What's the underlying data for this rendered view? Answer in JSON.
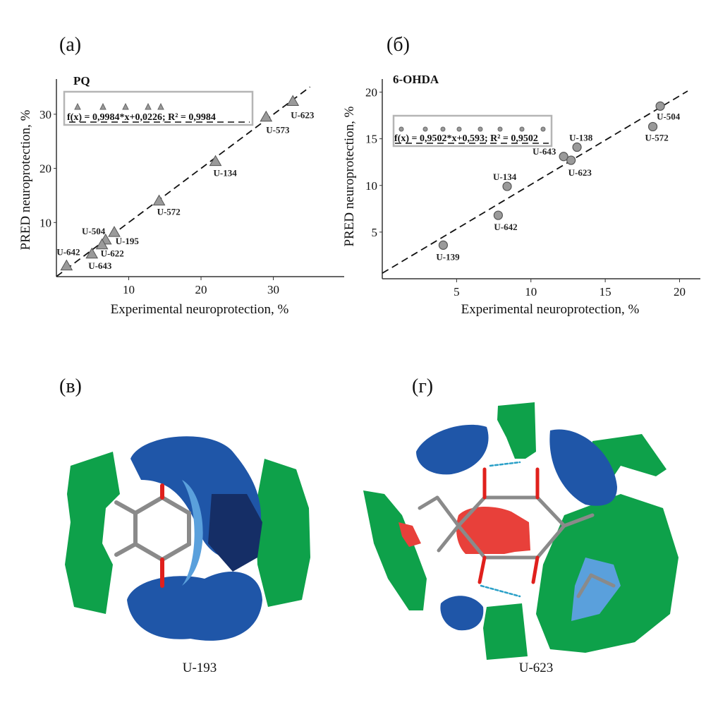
{
  "panels": {
    "a_label": "(a)",
    "b_label": "(б)",
    "c_label": "(в)",
    "d_label": "(г)",
    "c_caption": "U-193",
    "d_caption": "U-623"
  },
  "colors": {
    "marker_fill": "#9a9a9a",
    "marker_stroke": "#555555",
    "field_blue": "#1f56a8",
    "field_light_blue": "#5aa0dc",
    "field_green": "#0ea14a",
    "field_red": "#e8403a",
    "bond_gray": "#8a8a8a",
    "oxygen_red": "#e0201c"
  },
  "chart_data": [
    {
      "type": "scatter",
      "title": "PQ",
      "xlabel": "Experimental neuroprotection, %",
      "ylabel": "PRED neuroprotection, %",
      "xlim": [
        0,
        39.8
      ],
      "ylim": [
        0,
        36.5
      ],
      "xticks": [
        10,
        20,
        30
      ],
      "yticks": [
        10,
        20,
        30
      ],
      "grid": false,
      "marker": "triangle",
      "equation": "f(x) = 0,9984*x+0,0226; R² = 0,9984",
      "fit": {
        "slope": 0.9984,
        "intercept": 0.0226,
        "r2": 0.9984
      },
      "points": [
        {
          "label": "U-623",
          "x": 32.7,
          "y": 32.4
        },
        {
          "label": "U-573",
          "x": 29.0,
          "y": 29.5
        },
        {
          "label": "U-134",
          "x": 22.0,
          "y": 21.3
        },
        {
          "label": "U-572",
          "x": 14.2,
          "y": 14.0
        },
        {
          "label": "U-504",
          "x": 8.0,
          "y": 8.2
        },
        {
          "label": "U-195",
          "x": 6.8,
          "y": 6.8
        },
        {
          "label": "U-622",
          "x": 6.3,
          "y": 5.9
        },
        {
          "label": "U-643",
          "x": 4.9,
          "y": 4.2
        },
        {
          "label": "U-642",
          "x": 1.4,
          "y": 2.0
        }
      ]
    },
    {
      "type": "scatter",
      "title": "6-OHDA",
      "xlabel": "Experimental neuroprotection, %",
      "ylabel": "PRED neuroprotection, %",
      "xlim": [
        0,
        21.4
      ],
      "ylim": [
        0,
        21.4
      ],
      "xticks": [
        5,
        10,
        15,
        20
      ],
      "yticks": [
        5,
        10,
        15,
        20
      ],
      "grid": false,
      "marker": "circle",
      "equation": "f(x) = 0,9502*x+0,593; R² = 0,9502",
      "fit": {
        "slope": 0.9502,
        "intercept": 0.593,
        "r2": 0.9502
      },
      "points": [
        {
          "label": "U-504",
          "x": 18.7,
          "y": 18.5
        },
        {
          "label": "U-572",
          "x": 18.2,
          "y": 16.3
        },
        {
          "label": "U-138",
          "x": 13.1,
          "y": 14.1
        },
        {
          "label": "U-643",
          "x": 12.2,
          "y": 13.1
        },
        {
          "label": "U-623",
          "x": 12.7,
          "y": 12.7
        },
        {
          "label": "U-134",
          "x": 8.4,
          "y": 9.9
        },
        {
          "label": "U-642",
          "x": 7.8,
          "y": 6.8
        },
        {
          "label": "U-139",
          "x": 4.1,
          "y": 3.6
        }
      ]
    }
  ]
}
